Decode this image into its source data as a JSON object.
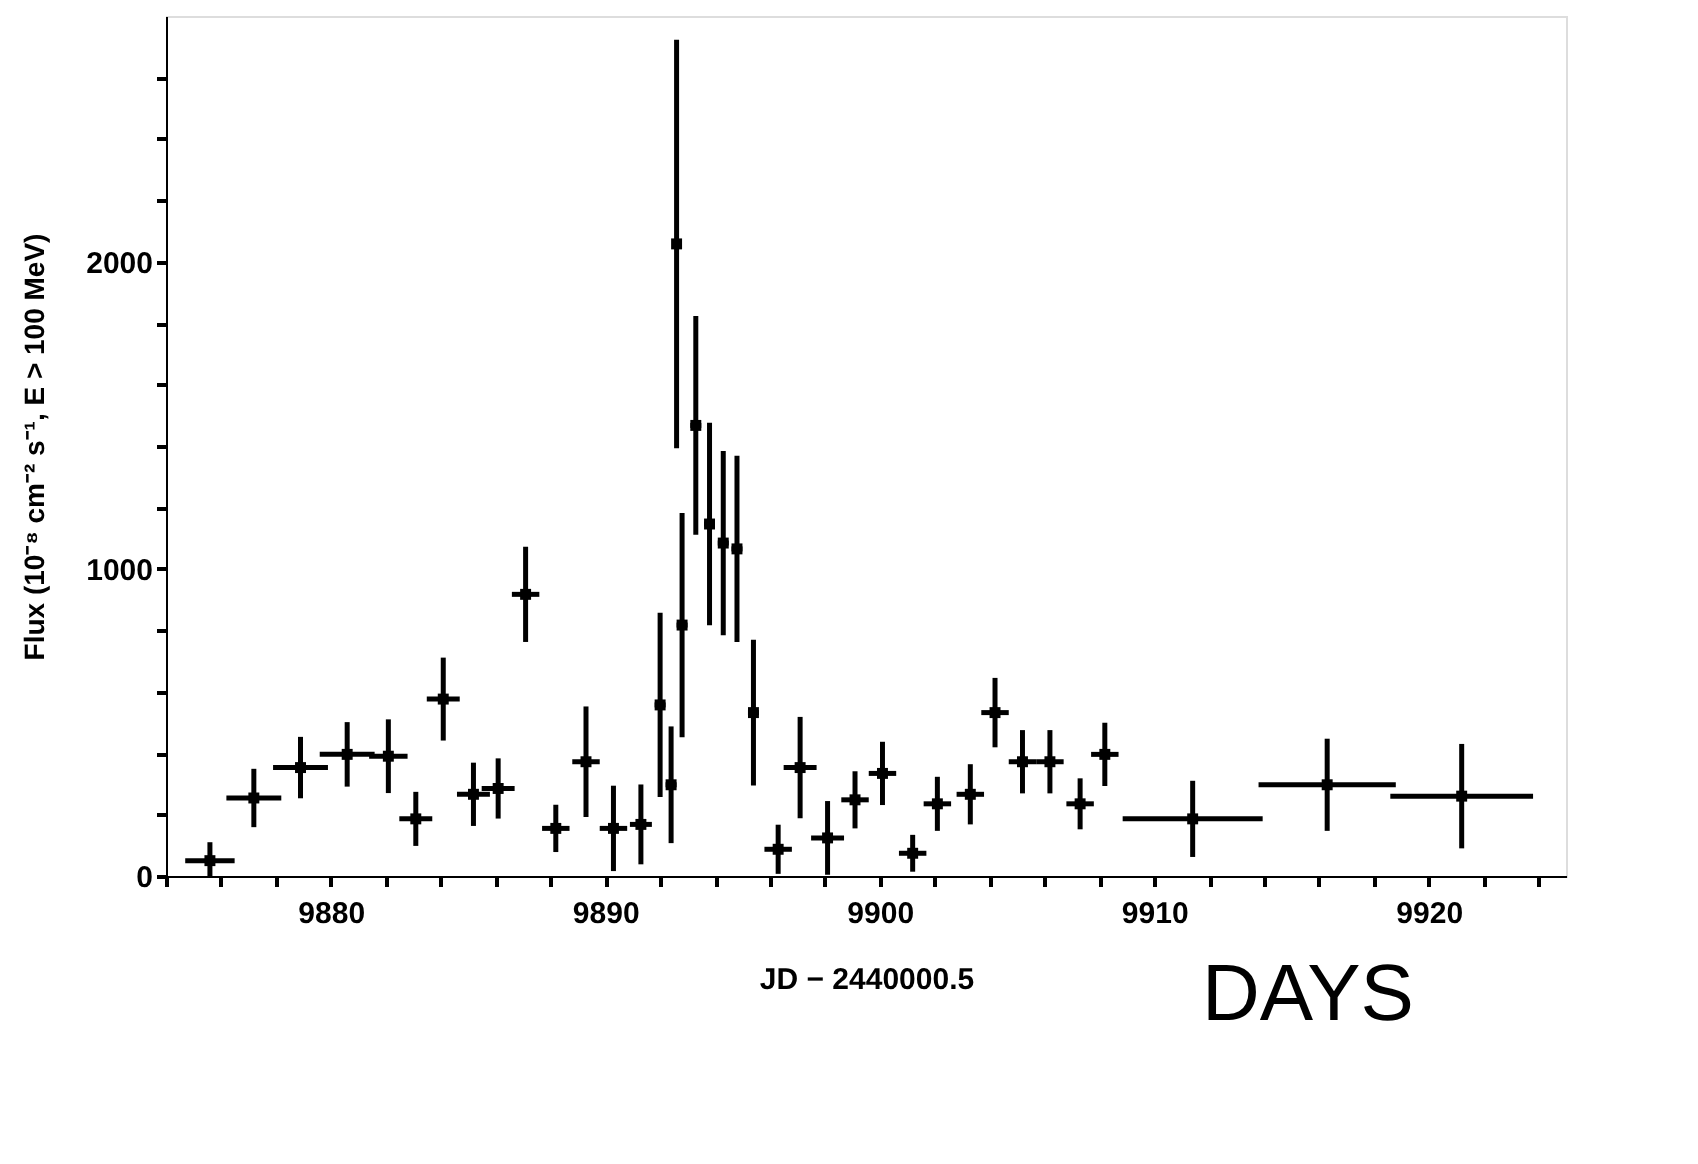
{
  "chart_data": {
    "type": "scatter",
    "xlabel": "JD − 2440000.5",
    "ylabel": "Flux (10⁻⁸ cm⁻² s⁻¹, E > 100 MeV)",
    "annotations": [
      "DAYS"
    ],
    "marker": "square",
    "grid": false,
    "xlim": [
      9874,
      9925
    ],
    "ylim": [
      0,
      2800
    ],
    "xticks": [
      {
        "value": 9874,
        "label": null
      },
      {
        "value": 9876,
        "label": null
      },
      {
        "value": 9878,
        "label": null
      },
      9880,
      {
        "value": 9882,
        "label": null
      },
      {
        "value": 9884,
        "label": null
      },
      {
        "value": 9886,
        "label": null
      },
      {
        "value": 9888,
        "label": null
      },
      9890,
      {
        "value": 9892,
        "label": null
      },
      {
        "value": 9894,
        "label": null
      },
      {
        "value": 9896,
        "label": null
      },
      {
        "value": 9898,
        "label": null
      },
      9900,
      {
        "value": 9902,
        "label": null
      },
      {
        "value": 9904,
        "label": null
      },
      {
        "value": 9906,
        "label": null
      },
      {
        "value": 9908,
        "label": null
      },
      9910,
      {
        "value": 9912,
        "label": null
      },
      {
        "value": 9914,
        "label": null
      },
      {
        "value": 9916,
        "label": null
      },
      {
        "value": 9918,
        "label": null
      },
      9920,
      {
        "value": 9922,
        "label": null
      },
      {
        "value": 9924,
        "label": null
      }
    ],
    "yticks": [
      0,
      {
        "value": 200,
        "label": null
      },
      {
        "value": 400,
        "label": null
      },
      {
        "value": 600,
        "label": null
      },
      {
        "value": 800,
        "label": null
      },
      1000,
      {
        "value": 1200,
        "label": null
      },
      {
        "value": 1400,
        "label": null
      },
      {
        "value": 1600,
        "label": null
      },
      {
        "value": 1800,
        "label": null
      },
      2000,
      {
        "value": 2200,
        "label": null
      },
      {
        "value": 2400,
        "label": null
      },
      {
        "value": 2600,
        "label": null
      }
    ],
    "series": [
      {
        "color": "#000000",
        "x": [
          9875.6,
          9877.2,
          9878.9,
          9880.6,
          9882.1,
          9883.1,
          9884.1,
          9885.2,
          9886.1,
          9887.1,
          9888.2,
          9889.3,
          9890.3,
          9891.3,
          9892.0,
          9892.4,
          9892.6,
          9892.8,
          9893.3,
          9893.8,
          9894.3,
          9894.8,
          9895.4,
          9896.3,
          9897.1,
          9898.1,
          9899.1,
          9900.1,
          9901.2,
          9902.1,
          9903.3,
          9904.2,
          9905.2,
          9906.2,
          9907.3,
          9908.2,
          9911.4,
          9916.3,
          9921.2
        ],
        "values": [
          50,
          254,
          353,
          396,
          390,
          186,
          576,
          266,
          285,
          917,
          155,
          372,
          155,
          168,
          557,
          297,
          2058,
          817,
          1467,
          1146,
          1084,
          1065,
          532,
          87,
          353,
          124,
          248,
          334,
          74,
          235,
          266,
          532,
          372,
          372,
          235,
          396,
          186,
          297,
          260
        ],
        "errors": [
          60,
          95,
          100,
          105,
          120,
          88,
          135,
          103,
          98,
          155,
          77,
          180,
          139,
          130,
          300,
          190,
          665,
          365,
          356,
          330,
          300,
          303,
          237,
          80,
          165,
          120,
          93,
          103,
          60,
          88,
          98,
          113,
          103,
          103,
          83,
          103,
          124,
          150,
          170
        ],
        "xerrors": [
          0.9,
          1.0,
          1.0,
          1.0,
          0.7,
          0.6,
          0.6,
          0.6,
          0.6,
          0.5,
          0.5,
          0.5,
          0.5,
          0.4,
          0.2,
          0.2,
          0.1,
          0.2,
          0.2,
          0.2,
          0.2,
          0.2,
          0.2,
          0.5,
          0.6,
          0.6,
          0.5,
          0.5,
          0.5,
          0.5,
          0.5,
          0.5,
          0.5,
          0.5,
          0.5,
          0.5,
          2.55,
          2.5,
          2.6
        ]
      }
    ]
  }
}
